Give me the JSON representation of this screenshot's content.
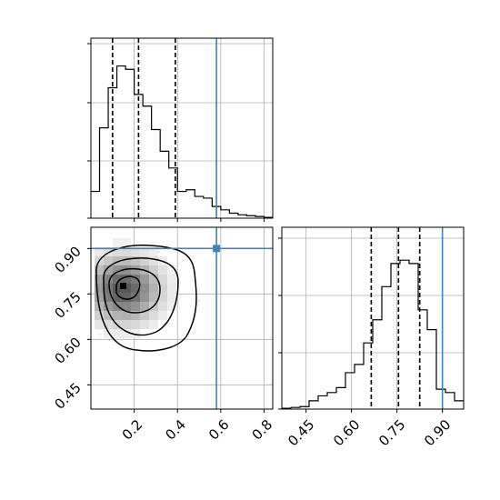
{
  "chart_data": [
    {
      "panel": "top-left",
      "type": "histogram",
      "xlim": [
        0.0,
        0.84
      ],
      "ylim": [
        0,
        1.0
      ],
      "grid": true,
      "bin_edges": [
        0.0,
        0.04,
        0.08,
        0.12,
        0.16,
        0.2,
        0.24,
        0.28,
        0.32,
        0.36,
        0.4,
        0.44,
        0.48,
        0.52,
        0.56,
        0.6,
        0.64,
        0.68,
        0.72,
        0.76,
        0.8,
        0.84
      ],
      "values": [
        0.16,
        0.54,
        0.78,
        0.91,
        0.89,
        0.74,
        0.67,
        0.53,
        0.4,
        0.3,
        0.16,
        0.17,
        0.13,
        0.12,
        0.07,
        0.05,
        0.03,
        0.02,
        0.015,
        0.01,
        0.005
      ],
      "quantiles": [
        0.1,
        0.22,
        0.39
      ],
      "truth": 0.58
    },
    {
      "panel": "bottom-left",
      "type": "2d-density",
      "xlim": [
        0.0,
        0.84
      ],
      "ylim": [
        0.37,
        0.97
      ],
      "xticks": [
        "0.2",
        "0.4",
        "0.6",
        "0.8"
      ],
      "yticks": [
        "0.45",
        "0.60",
        "0.75",
        "0.90"
      ],
      "grid": true,
      "truth": {
        "x": 0.58,
        "y": 0.9
      },
      "peak": {
        "x": 0.15,
        "y": 0.77
      },
      "contour_levels": 4
    },
    {
      "panel": "bottom-right",
      "type": "histogram",
      "xlim": [
        0.37,
        0.97
      ],
      "ylim": [
        0,
        1.0
      ],
      "xticks": [
        "0.45",
        "0.60",
        "0.75",
        "0.90"
      ],
      "grid": true,
      "bin_edges": [
        0.37,
        0.4,
        0.43,
        0.46,
        0.49,
        0.52,
        0.55,
        0.58,
        0.61,
        0.64,
        0.67,
        0.7,
        0.73,
        0.76,
        0.79,
        0.82,
        0.85,
        0.88,
        0.91,
        0.94,
        0.97
      ],
      "values": [
        0.005,
        0.01,
        0.015,
        0.05,
        0.08,
        0.1,
        0.13,
        0.22,
        0.27,
        0.4,
        0.54,
        0.74,
        0.88,
        0.9,
        0.88,
        0.6,
        0.48,
        0.12,
        0.1,
        0.05
      ],
      "quantiles": [
        0.665,
        0.755,
        0.825
      ],
      "truth": 0.9
    }
  ],
  "colors": {
    "truth": "#4682b4",
    "line": "#000000",
    "grid": "#b0b0b0",
    "scatter": "#888888"
  }
}
